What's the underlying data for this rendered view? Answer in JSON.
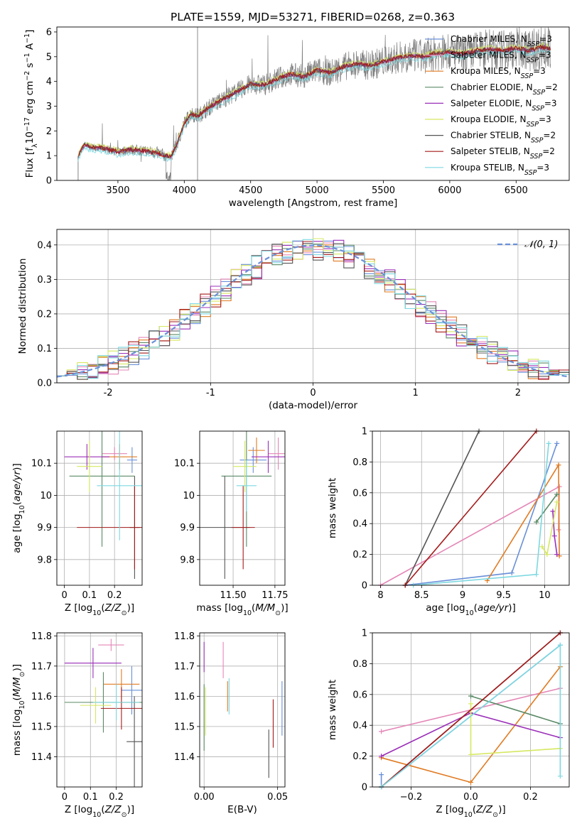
{
  "figure_title": "PLATE=1559, MJD=53271, FIBERID=0268, z=0.363",
  "colors": {
    "chabrier_miles": "#6a90d8",
    "salpeter_miles": "#e486b6",
    "kroupa_miles": "#e07b22",
    "chabrier_elodie": "#5a8a66",
    "salpeter_elodie": "#9b2fb8",
    "kroupa_elodie": "#d6e860",
    "chabrier_stelib": "#555555",
    "salpeter_stelib": "#a51a1a",
    "kroupa_stelib": "#7dd8e0",
    "data": "#808080",
    "grid": "#b0b0b0"
  },
  "chart_data": [
    {
      "id": "spectrum",
      "type": "line",
      "title": "PLATE=1559, MJD=53271, FIBERID=0268, z=0.363",
      "xlabel": "wavelength [Angstrom, rest frame]",
      "ylabel": "Flux [f_λ 10^-17 erg cm^-2 s^-1 A^-1]",
      "xlim": [
        3040,
        6900
      ],
      "ylim": [
        0,
        6.2
      ],
      "xticks": [
        3500,
        4000,
        4500,
        5000,
        5500,
        6000,
        6500
      ],
      "yticks": [
        0,
        1,
        2,
        3,
        4,
        5,
        6
      ],
      "grid": false,
      "legend_position": "upper right",
      "legend": [
        "Chabrier MILES, N_SSP=3",
        "Salpeter MILES, N_SSP=3",
        "Kroupa MILES, N_SSP=3",
        "Chabrier ELODIE, N_SSP=2",
        "Salpeter ELODIE, N_SSP=3",
        "Kroupa ELODIE, N_SSP=3",
        "Chabrier STELIB, N_SSP=2",
        "Salpeter STELIB, N_SSP=2",
        "Kroupa STELIB, N_SSP=3"
      ],
      "model_x": [
        3200,
        3250,
        3300,
        3400,
        3500,
        3600,
        3700,
        3800,
        3860,
        3900,
        3950,
        4000,
        4050,
        4100,
        4200,
        4300,
        4400,
        4500,
        4600,
        4700,
        4800,
        4900,
        5000,
        5100,
        5200,
        5300,
        5400,
        5500,
        5600,
        5700,
        5800,
        5900,
        6000,
        6100,
        6200,
        6300,
        6400,
        6500,
        6600,
        6700,
        6760
      ],
      "model_y": [
        1.0,
        1.45,
        1.35,
        1.3,
        1.15,
        1.25,
        1.2,
        1.1,
        1.0,
        0.95,
        1.55,
        2.3,
        2.7,
        2.6,
        3.0,
        3.3,
        3.6,
        3.9,
        3.85,
        4.1,
        4.3,
        4.2,
        4.45,
        4.35,
        4.6,
        4.7,
        4.65,
        4.8,
        4.95,
        5.05,
        5.0,
        5.15,
        5.2,
        5.1,
        5.25,
        5.3,
        5.25,
        5.35,
        5.25,
        5.4,
        5.3
      ]
    },
    {
      "id": "residuals",
      "type": "step",
      "xlabel": "(data-model)/error",
      "ylabel": "Normed distribution",
      "xlim": [
        -2.5,
        2.5
      ],
      "ylim": [
        0,
        0.445
      ],
      "xticks": [
        -2,
        -1,
        0,
        1,
        2
      ],
      "yticks": [
        0.0,
        0.1,
        0.2,
        0.3,
        0.4
      ],
      "grid": true,
      "legend_position": "upper right",
      "legend": [
        "𝒩(0, 1)"
      ],
      "bin_start": -2.5,
      "bin_width": 0.1
    },
    {
      "id": "age-vs-z",
      "type": "errorbar",
      "xlabel": "Z [log10(Z/Z⊙)]",
      "ylabel": "age  [log10(age/yr)]",
      "xlim": [
        -0.03,
        0.31
      ],
      "ylim": [
        9.72,
        10.2
      ],
      "xticks": [
        0.0,
        0.1,
        0.2
      ],
      "yticks": [
        9.8,
        9.9,
        10.0,
        10.1
      ],
      "grid": true,
      "points": [
        {
          "c": "chabrier_miles",
          "x": 0.27,
          "xerr": 0.02,
          "y": 10.11,
          "yerr": 0.04
        },
        {
          "c": "salpeter_miles",
          "x": 0.2,
          "xerr": 0.05,
          "y": 10.13,
          "yerr": 0.02
        },
        {
          "c": "kroupa_miles",
          "x": 0.22,
          "xerr": 0.07,
          "y": 10.12,
          "yerr": 0.04
        },
        {
          "c": "chabrier_elodie",
          "x": 0.15,
          "xerr": 0.13,
          "y": 10.06,
          "yerr": 0.22
        },
        {
          "c": "salpeter_elodie",
          "x": 0.09,
          "xerr": 0.09,
          "y": 10.12,
          "yerr": 0.04
        },
        {
          "c": "kroupa_elodie",
          "x": 0.1,
          "xerr": 0.05,
          "y": 10.09,
          "yerr": 0.08
        },
        {
          "c": "chabrier_stelib",
          "x": 0.28,
          "xerr": 0.02,
          "y": 9.9,
          "yerr": 0.16
        },
        {
          "c": "salpeter_stelib",
          "x": 0.28,
          "xerr": 0.23,
          "y": 9.9,
          "yerr": 0.13
        },
        {
          "c": "kroupa_stelib",
          "x": 0.22,
          "xerr": 0.09,
          "y": 10.03,
          "yerr": 0.17
        }
      ]
    },
    {
      "id": "age-vs-mass",
      "type": "errorbar",
      "xlabel": "mass [log10(M/M⊙)]",
      "ylabel": "",
      "xlim": [
        11.3,
        11.81
      ],
      "ylim": [
        9.72,
        10.2
      ],
      "xticks": [
        11.5,
        11.75
      ],
      "xtick_labels": [
        "11.50",
        "11.75"
      ],
      "yticks": [
        9.8,
        9.9,
        10.0,
        10.1
      ],
      "grid": true,
      "points": [
        {
          "c": "chabrier_miles",
          "x": 11.62,
          "xerr": 0.08,
          "y": 10.11,
          "yerr": 0.04
        },
        {
          "c": "salpeter_miles",
          "x": 11.77,
          "xerr": 0.06,
          "y": 10.13,
          "yerr": 0.05
        },
        {
          "c": "kroupa_miles",
          "x": 11.64,
          "xerr": 0.05,
          "y": 10.14,
          "yerr": 0.04
        },
        {
          "c": "chabrier_elodie",
          "x": 11.58,
          "xerr": 0.15,
          "y": 10.06,
          "yerr": 0.22
        },
        {
          "c": "salpeter_elodie",
          "x": 11.71,
          "xerr": 0.1,
          "y": 10.12,
          "yerr": 0.05
        },
        {
          "c": "kroupa_elodie",
          "x": 11.57,
          "xerr": 0.07,
          "y": 10.09,
          "yerr": 0.08
        },
        {
          "c": "chabrier_stelib",
          "x": 11.45,
          "xerr": 0.15,
          "y": 9.9,
          "yerr": 0.16
        },
        {
          "c": "salpeter_stelib",
          "x": 11.56,
          "xerr": 0.07,
          "y": 9.9,
          "yerr": 0.13
        },
        {
          "c": "kroupa_stelib",
          "x": 11.58,
          "xerr": 0.06,
          "y": 10.03,
          "yerr": 0.08
        }
      ]
    },
    {
      "id": "weight-vs-age",
      "type": "line",
      "xlabel": "age  [log10(age/yr)]",
      "ylabel": "mass weight",
      "xlim": [
        7.9,
        10.3
      ],
      "ylim": [
        0.0,
        1.0
      ],
      "xticks": [
        8.0,
        8.5,
        9.0,
        9.5,
        10.0
      ],
      "yticks": [
        0.0,
        0.2,
        0.4,
        0.6,
        0.8,
        1.0
      ],
      "grid": true,
      "series": [
        {
          "c": "chabrier_miles",
          "x": [
            8.3,
            9.6,
            10.15
          ],
          "y": [
            0.0,
            0.08,
            0.92
          ]
        },
        {
          "c": "salpeter_miles",
          "x": [
            8.0,
            10.18,
            10.17
          ],
          "y": [
            0.0,
            0.64,
            0.36
          ]
        },
        {
          "c": "kroupa_miles",
          "x": [
            9.3,
            10.17,
            10.18
          ],
          "y": [
            0.03,
            0.78,
            0.19
          ]
        },
        {
          "c": "chabrier_elodie",
          "x": [
            9.9,
            10.15
          ],
          "y": [
            0.41,
            0.59
          ]
        },
        {
          "c": "salpeter_elodie",
          "x": [
            10.1,
            10.12,
            10.15
          ],
          "y": [
            0.48,
            0.32,
            0.2
          ]
        },
        {
          "c": "kroupa_elodie",
          "x": [
            9.97,
            10.03,
            10.15
          ],
          "y": [
            0.25,
            0.2,
            0.54
          ]
        },
        {
          "c": "chabrier_stelib",
          "x": [
            8.3,
            9.2
          ],
          "y": [
            0.0,
            1.0
          ]
        },
        {
          "c": "salpeter_stelib",
          "x": [
            8.3,
            9.9
          ],
          "y": [
            0.0,
            1.0
          ]
        },
        {
          "c": "kroupa_stelib",
          "x": [
            8.4,
            9.9,
            10.05
          ],
          "y": [
            0.0,
            0.07,
            0.92
          ]
        }
      ]
    },
    {
      "id": "mass-vs-z",
      "type": "errorbar",
      "xlabel": "Z [log10(Z/Z⊙)]",
      "ylabel": "mass [log10(M/M⊙)]",
      "xlim": [
        -0.03,
        0.3
      ],
      "ylim": [
        11.3,
        11.81
      ],
      "xticks": [
        0.0,
        0.1,
        0.2
      ],
      "yticks": [
        11.4,
        11.5,
        11.6,
        11.7,
        11.8
      ],
      "grid": true,
      "points": [
        {
          "c": "chabrier_miles",
          "x": 0.26,
          "xerr": 0.04,
          "y": 11.62,
          "yerr": 0.08
        },
        {
          "c": "salpeter_miles",
          "x": 0.18,
          "xerr": 0.05,
          "y": 11.77,
          "yerr": 0.02
        },
        {
          "c": "kroupa_miles",
          "x": 0.22,
          "xerr": 0.07,
          "y": 11.64,
          "yerr": 0.05
        },
        {
          "c": "chabrier_elodie",
          "x": 0.15,
          "xerr": 0.15,
          "y": 11.58,
          "yerr": 0.1
        },
        {
          "c": "salpeter_elodie",
          "x": 0.11,
          "xerr": 0.11,
          "y": 11.71,
          "yerr": 0.05
        },
        {
          "c": "kroupa_elodie",
          "x": 0.12,
          "xerr": 0.06,
          "y": 11.57,
          "yerr": 0.06
        },
        {
          "c": "chabrier_stelib",
          "x": 0.27,
          "xerr": 0.03,
          "y": 11.45,
          "yerr": 0.15
        },
        {
          "c": "salpeter_stelib",
          "x": 0.22,
          "xerr": 0.08,
          "y": 11.56,
          "yerr": 0.07
        },
        {
          "c": "kroupa_stelib",
          "x": 0.2,
          "xerr": 0.09,
          "y": 11.58,
          "yerr": 0.06
        }
      ]
    },
    {
      "id": "mass-vs-ebv",
      "type": "errorbar",
      "xlabel": "E(B-V)",
      "ylabel": "",
      "xlim": [
        -0.003,
        0.055
      ],
      "ylim": [
        11.3,
        11.81
      ],
      "xticks": [
        0.0,
        0.05
      ],
      "xtick_labels": [
        "0.00",
        "0.05"
      ],
      "yticks": [
        11.4,
        11.5,
        11.6,
        11.7,
        11.8
      ],
      "grid": true,
      "points": [
        {
          "c": "chabrier_miles",
          "x": 0.053,
          "xerr": 0,
          "y": 11.56,
          "yerr": 0.09
        },
        {
          "c": "salpeter_miles",
          "x": 0.013,
          "xerr": 0,
          "y": 11.72,
          "yerr": 0.06
        },
        {
          "c": "kroupa_miles",
          "x": 0.016,
          "xerr": 0,
          "y": 11.6,
          "yerr": 0.05
        },
        {
          "c": "chabrier_elodie",
          "x": 0.0,
          "xerr": 0,
          "y": 11.53,
          "yerr": 0.11
        },
        {
          "c": "salpeter_elodie",
          "x": 0.0,
          "xerr": 0,
          "y": 11.73,
          "yerr": 0.05
        },
        {
          "c": "kroupa_elodie",
          "x": 0.001,
          "xerr": 0,
          "y": 11.55,
          "yerr": 0.08
        },
        {
          "c": "chabrier_stelib",
          "x": 0.044,
          "xerr": 0,
          "y": 11.41,
          "yerr": 0.08
        },
        {
          "c": "salpeter_stelib",
          "x": 0.047,
          "xerr": 0,
          "y": 11.51,
          "yerr": 0.08
        },
        {
          "c": "kroupa_stelib",
          "x": 0.017,
          "xerr": 0,
          "y": 11.6,
          "yerr": 0.06
        }
      ]
    },
    {
      "id": "weight-vs-z",
      "type": "line",
      "xlabel": "Z [log10(Z/Z⊙)]",
      "ylabel": "mass weight",
      "xlim": [
        -0.33,
        0.33
      ],
      "ylim": [
        0.0,
        1.0
      ],
      "xticks": [
        -0.2,
        0.0,
        0.2
      ],
      "xtick_labels": [
        "−0.2",
        "0.0",
        "0.2"
      ],
      "yticks": [
        0.0,
        0.2,
        0.4,
        0.6,
        0.8,
        1.0
      ],
      "grid": true,
      "series": [
        {
          "c": "chabrier_miles",
          "x": [
            -0.3,
            -0.3,
            0.3
          ],
          "y": [
            0.08,
            0.0,
            0.92
          ]
        },
        {
          "c": "salpeter_miles",
          "x": [
            -0.3,
            0.3
          ],
          "y": [
            0.36,
            0.64
          ]
        },
        {
          "c": "kroupa_miles",
          "x": [
            -0.3,
            0.0,
            0.3
          ],
          "y": [
            0.19,
            0.03,
            0.78
          ]
        },
        {
          "c": "chabrier_elodie",
          "x": [
            0.0,
            0.3
          ],
          "y": [
            0.59,
            0.41
          ]
        },
        {
          "c": "salpeter_elodie",
          "x": [
            -0.3,
            0.0,
            0.3
          ],
          "y": [
            0.2,
            0.48,
            0.32
          ]
        },
        {
          "c": "kroupa_elodie",
          "x": [
            0.0,
            0.0,
            0.3
          ],
          "y": [
            0.54,
            0.21,
            0.25
          ]
        },
        {
          "c": "chabrier_stelib",
          "x": [
            -0.3,
            0.3
          ],
          "y": [
            0.0,
            1.0
          ]
        },
        {
          "c": "salpeter_stelib",
          "x": [
            -0.3,
            0.3
          ],
          "y": [
            0.0,
            1.0
          ]
        },
        {
          "c": "kroupa_stelib",
          "x": [
            -0.3,
            0.3,
            0.3
          ],
          "y": [
            0.0,
            0.92,
            0.07
          ]
        }
      ]
    }
  ]
}
